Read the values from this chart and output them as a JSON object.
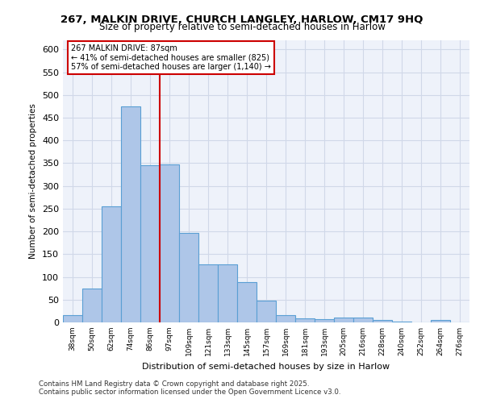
{
  "title_line1": "267, MALKIN DRIVE, CHURCH LANGLEY, HARLOW, CM17 9HQ",
  "title_line2": "Size of property relative to semi-detached houses in Harlow",
  "xlabel": "Distribution of semi-detached houses by size in Harlow",
  "ylabel": "Number of semi-detached properties",
  "footnote_line1": "Contains HM Land Registry data © Crown copyright and database right 2025.",
  "footnote_line2": "Contains public sector information licensed under the Open Government Licence v3.0.",
  "annotation_title": "267 MALKIN DRIVE: 87sqm",
  "annotation_line1": "← 41% of semi-detached houses are smaller (825)",
  "annotation_line2": "57% of semi-detached houses are larger (1,140) →",
  "bar_color": "#aec6e8",
  "bar_edge_color": "#5a9fd4",
  "line_color": "#cc0000",
  "grid_color": "#d0d8e8",
  "background_color": "#eef2fa",
  "categories": [
    "38sqm",
    "50sqm",
    "62sqm",
    "74sqm",
    "86sqm",
    "97sqm",
    "109sqm",
    "121sqm",
    "133sqm",
    "145sqm",
    "157sqm",
    "169sqm",
    "181sqm",
    "193sqm",
    "205sqm",
    "216sqm",
    "228sqm",
    "240sqm",
    "252sqm",
    "264sqm",
    "276sqm"
  ],
  "values": [
    16,
    75,
    255,
    475,
    345,
    348,
    197,
    127,
    127,
    89,
    47,
    16,
    9,
    7,
    10,
    10,
    6,
    1,
    0,
    5,
    0
  ],
  "ylim": [
    0,
    620
  ],
  "yticks": [
    0,
    50,
    100,
    150,
    200,
    250,
    300,
    350,
    400,
    450,
    500,
    550,
    600
  ],
  "vline_x": 4.5
}
